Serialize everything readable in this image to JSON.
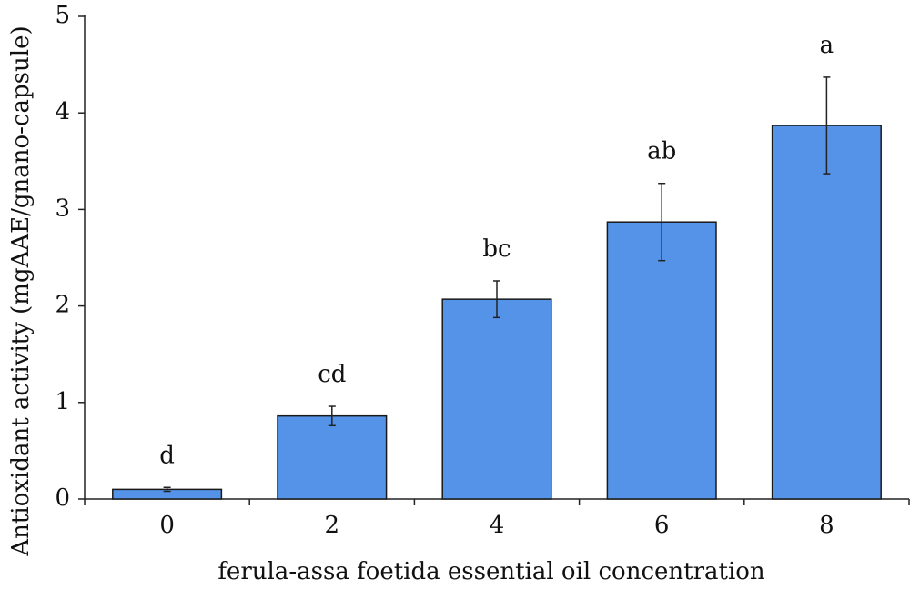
{
  "chart_data": {
    "type": "bar",
    "xlabel": "ferula-assa foetida essential oil concentration",
    "ylabel": "Antioxidant activity (mgAAE/gnano-capsule)",
    "categories": [
      "0",
      "2",
      "4",
      "6",
      "8"
    ],
    "values": [
      0.1,
      0.86,
      2.07,
      2.87,
      3.87
    ],
    "errors": [
      0.02,
      0.1,
      0.19,
      0.4,
      0.5
    ],
    "annotations": [
      "d",
      "cd",
      "bc",
      "ab",
      "a"
    ],
    "color": "#5593e8",
    "ylim": [
      0,
      5
    ],
    "yticks": [
      0,
      1,
      2,
      3,
      4,
      5
    ]
  }
}
